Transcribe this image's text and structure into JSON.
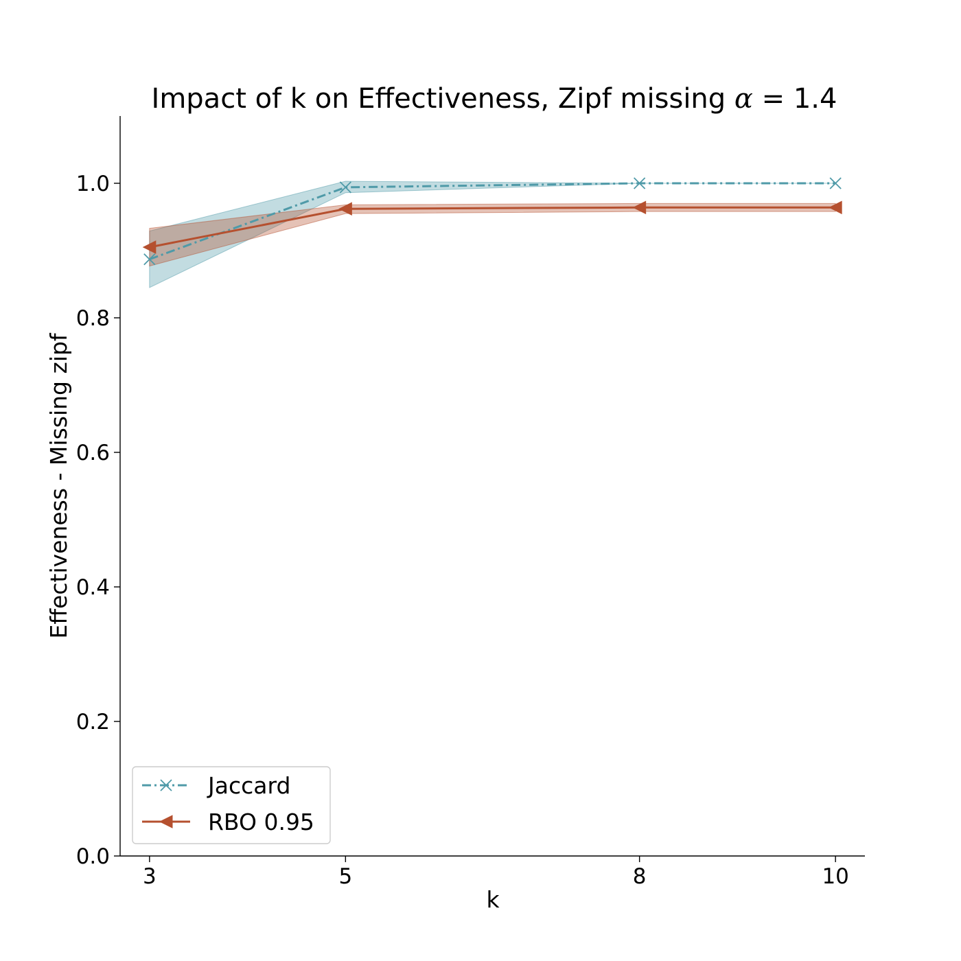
{
  "chart_data": {
    "type": "line",
    "title": "Impact of k on Effectiveness, Zipf missing ",
    "title_math_symbol": "α",
    "title_math_value": " = 1.4",
    "xlabel": "k",
    "ylabel": "Effectiveness - Missing zipf",
    "x": [
      3,
      5,
      8,
      10
    ],
    "xlim": [
      2.7,
      10.3
    ],
    "ylim": [
      0.0,
      1.1
    ],
    "x_ticks": [
      3,
      5,
      8,
      10
    ],
    "y_ticks": [
      0.0,
      0.2,
      0.4,
      0.6,
      0.8,
      1.0
    ],
    "y_tick_labels": [
      "0.0",
      "0.2",
      "0.4",
      "0.6",
      "0.8",
      "1.0"
    ],
    "grid": false,
    "legend_position": "lower-left",
    "series": [
      {
        "name": "Jaccard",
        "color": "#4f9aa8",
        "line_style": "dash-dot",
        "marker": "x",
        "values": [
          0.887,
          0.994,
          1.0,
          1.0
        ],
        "lower": [
          0.845,
          0.986,
          1.0,
          1.0
        ],
        "upper": [
          0.929,
          1.003,
          1.0,
          1.0
        ]
      },
      {
        "name": "RBO 0.95",
        "color": "#b5502f",
        "line_style": "solid",
        "marker": "triangle-left",
        "values": [
          0.905,
          0.962,
          0.964,
          0.964
        ],
        "lower": [
          0.877,
          0.955,
          0.958,
          0.958
        ],
        "upper": [
          0.933,
          0.968,
          0.97,
          0.97
        ]
      }
    ]
  }
}
